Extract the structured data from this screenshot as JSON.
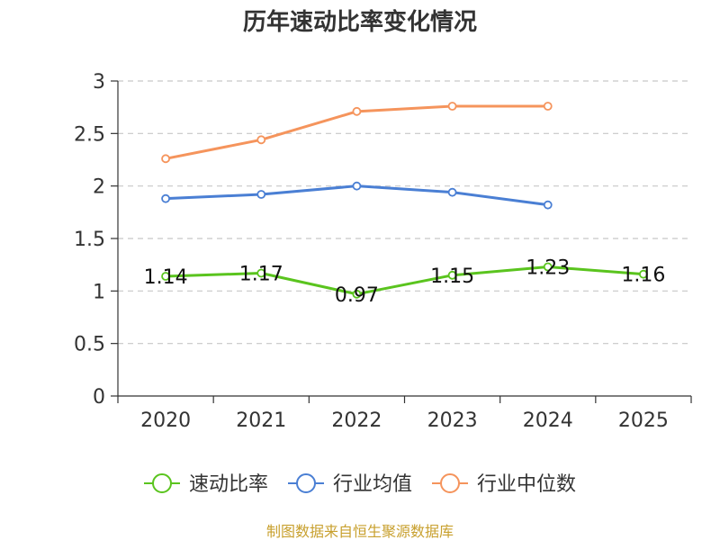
{
  "chart_data": {
    "type": "line",
    "title": "历年速动比率变化情况",
    "categories": [
      "2020",
      "2021",
      "2022",
      "2023",
      "2024",
      "2025"
    ],
    "ylim": [
      0,
      3
    ],
    "yticks": [
      "0",
      "0.5",
      "1",
      "1.5",
      "2",
      "2.5",
      "3"
    ],
    "grid": true,
    "series": [
      {
        "name": "速动比率",
        "color": "#5ac41e",
        "values": [
          1.14,
          1.17,
          0.97,
          1.15,
          1.23,
          1.16
        ],
        "labels": [
          "1.14",
          "1.17",
          "0.97",
          "1.15",
          "1.23",
          "1.16"
        ]
      },
      {
        "name": "行业均值",
        "color": "#4a7fd4",
        "values": [
          1.88,
          1.92,
          2.0,
          1.94,
          1.82,
          null
        ]
      },
      {
        "name": "行业中位数",
        "color": "#f5945c",
        "values": [
          2.26,
          2.44,
          2.71,
          2.76,
          2.76,
          null
        ]
      }
    ],
    "legend_position": "bottom",
    "source": "制图数据来自恒生聚源数据库"
  }
}
